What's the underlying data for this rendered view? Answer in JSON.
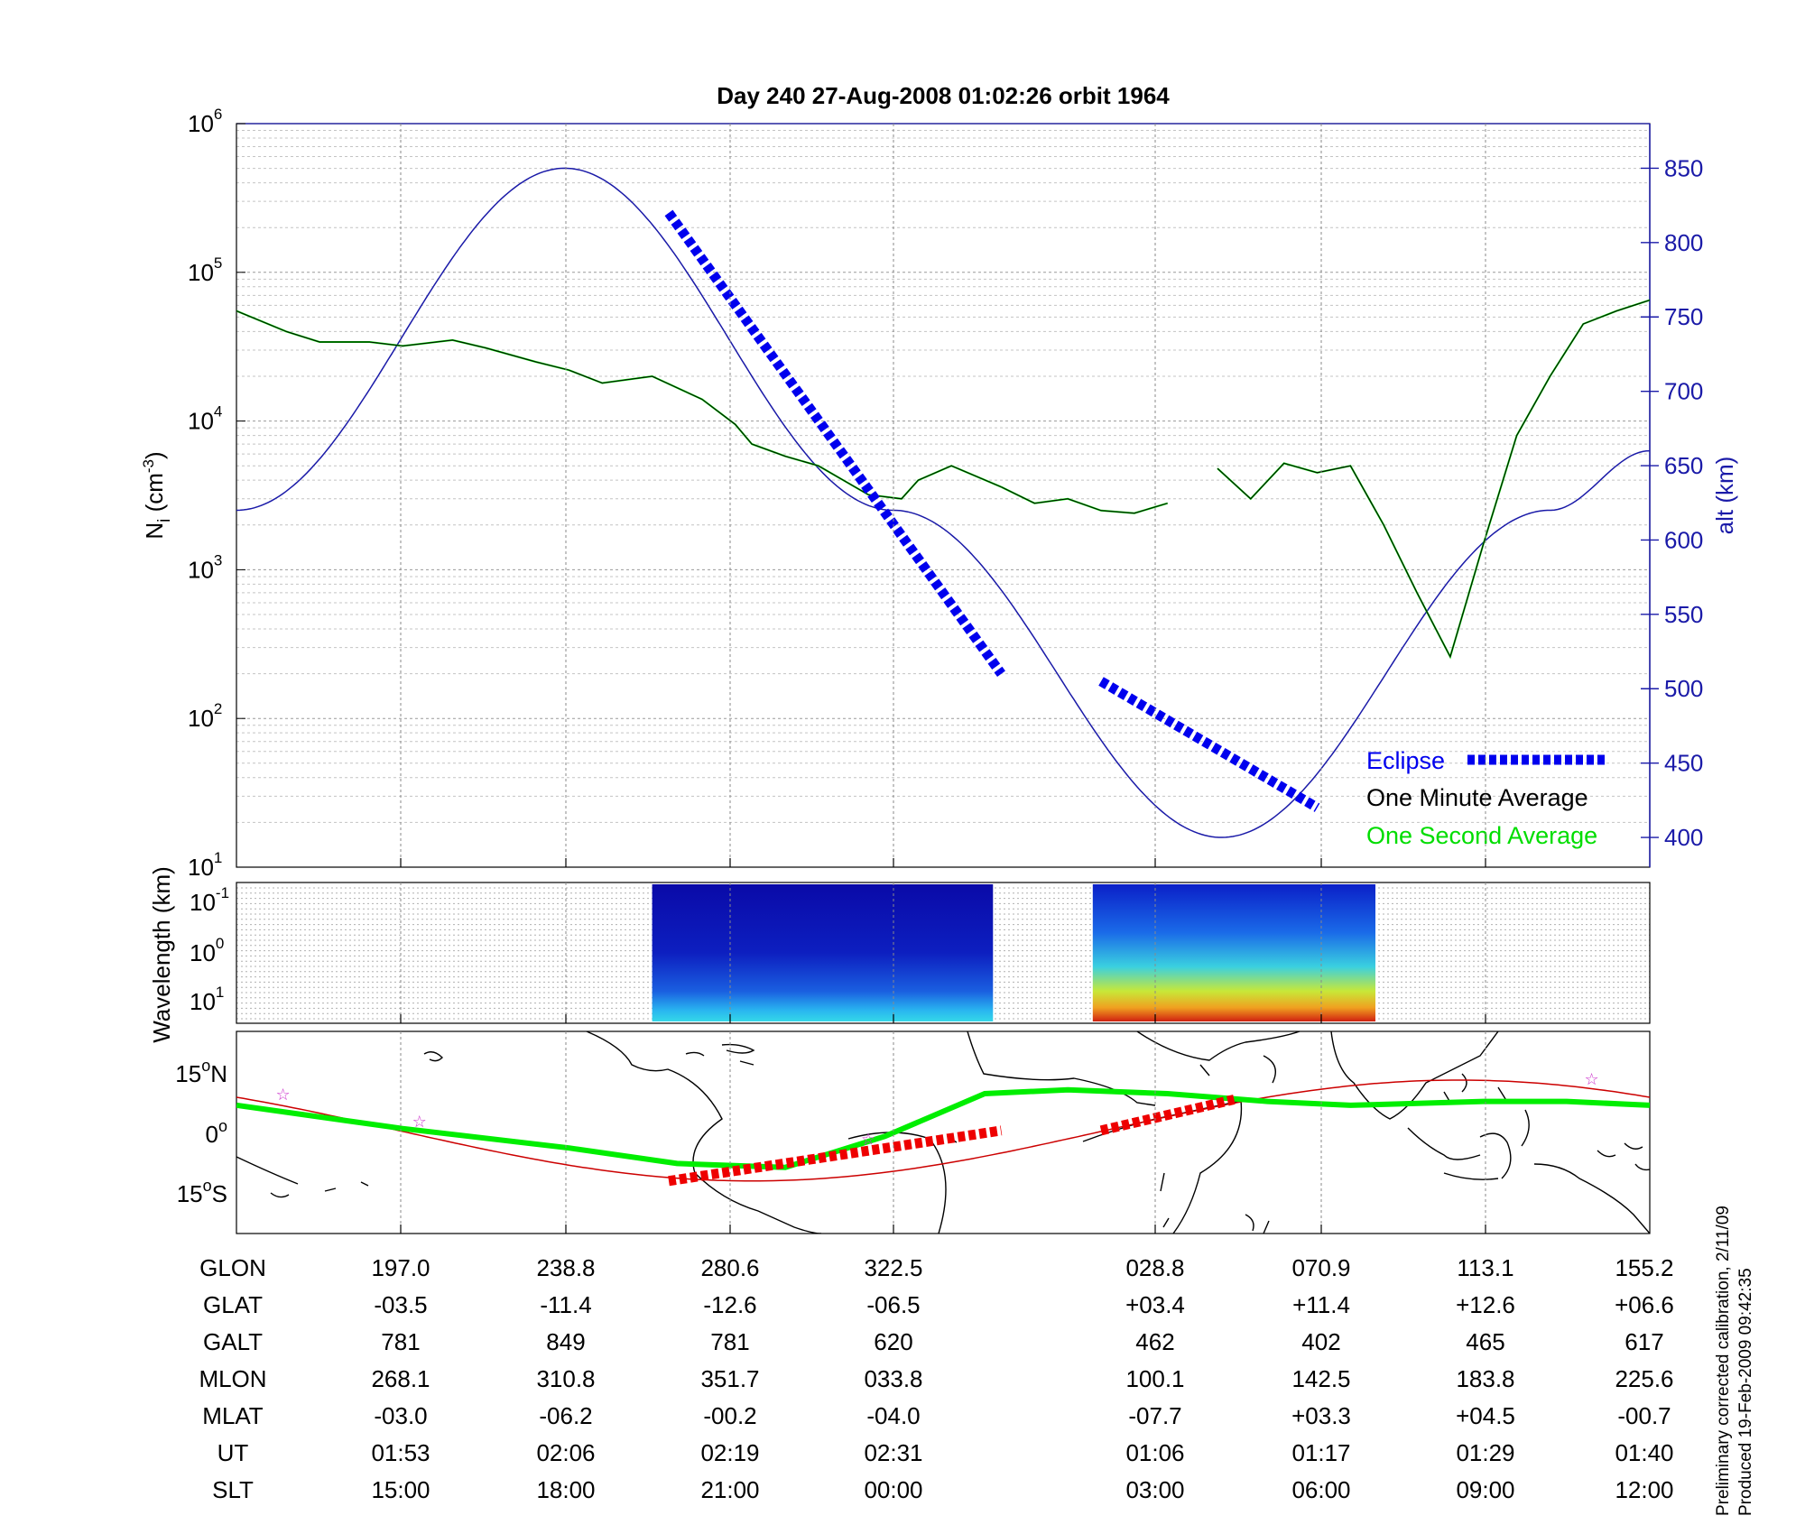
{
  "title": "Day 240  27-Aug-2008 01:02:26   orbit 1964",
  "colors": {
    "one_minute": "#000000",
    "one_second": "#00dd00",
    "eclipse": "#0000ee",
    "altitude": "#1a1aa8",
    "footprint": "#00ee00",
    "track": "#cc0000",
    "map_eclipse": "#ee0000",
    "star": "#cc33cc"
  },
  "chart_data": [
    {
      "type": "line",
      "panel": "ion density and altitude",
      "ylabel_main": "N",
      "ylabel_sub": "i",
      "ylabel_unit": " (cm",
      "ylabel_unit_exp": "-3",
      "ylabel_unit_end": ")",
      "yscale": "log",
      "ylim": [
        10,
        1000000
      ],
      "y_ticks": [
        {
          "base": "10",
          "exp": "1"
        },
        {
          "base": "10",
          "exp": "2"
        },
        {
          "base": "10",
          "exp": "3"
        },
        {
          "base": "10",
          "exp": "4"
        },
        {
          "base": "10",
          "exp": "5"
        },
        {
          "base": "10",
          "exp": "6"
        }
      ],
      "y2label": "alt (km)",
      "y2lim": [
        380,
        880
      ],
      "y2_ticks": [
        "400",
        "450",
        "500",
        "550",
        "600",
        "650",
        "700",
        "750",
        "800",
        "850"
      ],
      "x_ticks_ut": [
        "01:53",
        "02:06",
        "02:19",
        "02:31",
        "01:06",
        "01:17",
        "01:29",
        "01:40"
      ],
      "grid": true,
      "legend": {
        "position": "bottom-right",
        "entries": [
          "Eclipse",
          "One Minute Average",
          "One Second Average"
        ]
      },
      "series_altitude": {
        "x": [
          0,
          1.975,
          3.95,
          5.925,
          7.9,
          8.5
        ],
        "y": [
          620,
          850,
          620,
          400,
          620,
          660
        ]
      },
      "series_density": [
        {
          "x": [
            0,
            0.3,
            0.5,
            0.8,
            1.0,
            1.3,
            1.5,
            1.8,
            2.0,
            2.2,
            2.5,
            2.8,
            3.0,
            3.1,
            3.3,
            3.5,
            3.8,
            4.0,
            4.1,
            4.3,
            4.6
          ],
          "y": [
            55000,
            40000,
            34000,
            34000,
            32000,
            35000,
            31000,
            25000,
            22000,
            18000,
            20000,
            14000,
            9500,
            7000,
            5800,
            5000,
            3200,
            3000,
            4000,
            5000,
            3600
          ]
        },
        {
          "x": [
            4.6,
            4.8,
            5.0,
            5.2,
            5.4,
            5.6
          ],
          "y": [
            3600,
            2800,
            3000,
            2500,
            2400,
            2800
          ]
        },
        {
          "x": [
            5.9,
            6.1,
            6.3,
            6.5,
            6.7,
            6.9,
            7.1,
            7.3,
            7.5,
            7.7,
            7.9,
            8.1,
            8.3,
            8.5
          ],
          "y": [
            4800,
            3000,
            5200,
            4500,
            5000,
            2000,
            700,
            260,
            1500,
            8000,
            20000,
            45000,
            55000,
            65000
          ]
        }
      ],
      "series_eclipse": [
        {
          "x": [
            2.6,
            4.6
          ],
          "alt": [
            820,
            510
          ]
        },
        {
          "x": [
            5.2,
            6.5
          ],
          "alt": [
            505,
            420
          ]
        }
      ]
    },
    {
      "type": "heatmap",
      "panel": "wavelength spectrogram",
      "ylabel": "Wavelength (km)",
      "y_ticks": [
        {
          "base": "10",
          "exp": "-1"
        },
        {
          "base": "10",
          "exp": "0"
        },
        {
          "base": "10",
          "exp": "1"
        }
      ],
      "blocks_x": [
        [
          2.5,
          4.55
        ],
        [
          5.15,
          6.85
        ]
      ]
    },
    {
      "type": "line",
      "panel": "ground track map",
      "y_ticks": [
        {
          "text": "15",
          "deg": "o",
          "hem": "N"
        },
        {
          "text": "0",
          "deg": "o",
          "hem": ""
        },
        {
          "text": "15",
          "deg": "o",
          "hem": "S"
        }
      ],
      "ylim": [
        -25,
        25
      ]
    }
  ],
  "table": {
    "rows": [
      {
        "label": "GLON",
        "values": [
          "197.0",
          "238.8",
          "280.6",
          "322.5",
          "028.8",
          "070.9",
          "113.1",
          "155.2"
        ]
      },
      {
        "label": "GLAT",
        "values": [
          "-03.5",
          "-11.4",
          "-12.6",
          "-06.5",
          "+03.4",
          "+11.4",
          "+12.6",
          "+06.6"
        ]
      },
      {
        "label": "GALT",
        "values": [
          "781",
          "849",
          "781",
          "620",
          "462",
          "402",
          "465",
          "617"
        ]
      },
      {
        "label": "MLON",
        "values": [
          "268.1",
          "310.8",
          "351.7",
          "033.8",
          "100.1",
          "142.5",
          "183.8",
          "225.6"
        ]
      },
      {
        "label": "MLAT",
        "values": [
          "-03.0",
          "-06.2",
          "-00.2",
          "-04.0",
          "-07.7",
          "+03.3",
          "+04.5",
          "-00.7"
        ]
      },
      {
        "label": "UT",
        "values": [
          "01:53",
          "02:06",
          "02:19",
          "02:31",
          "01:06",
          "01:17",
          "01:29",
          "01:40"
        ]
      },
      {
        "label": "SLT",
        "values": [
          "15:00",
          "18:00",
          "21:00",
          "00:00",
          "03:00",
          "06:00",
          "09:00",
          "12:00"
        ]
      }
    ]
  },
  "notes": {
    "line1": "Preliminary corrected calibration, 2/11/09",
    "line2": "Produced 19-Feb-2009 09:42:35"
  }
}
